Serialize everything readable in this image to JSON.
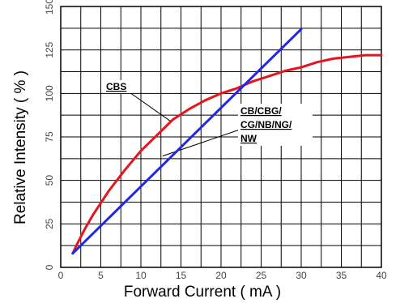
{
  "chart_data": {
    "type": "line",
    "xlabel": "Forward Current ( mA )",
    "ylabel": "Relative Intensity ( % )",
    "xlim": [
      0,
      40
    ],
    "ylim": [
      0,
      150
    ],
    "x_ticks": [
      "0",
      "5",
      "10",
      "15",
      "20",
      "25",
      "30",
      "35",
      "40"
    ],
    "y_ticks": [
      "0",
      "25",
      "50",
      "75",
      "100",
      "125",
      "150"
    ],
    "grid": true,
    "series": [
      {
        "label": "CBS",
        "color": "#e8141c",
        "x": [
          1.5,
          2,
          3,
          4,
          5,
          6,
          8,
          10,
          12,
          14,
          16,
          18,
          20,
          22,
          24,
          26,
          28,
          30,
          32,
          34,
          36,
          38,
          40
        ],
        "y": [
          8,
          13,
          22,
          30,
          37,
          44,
          56,
          67,
          76,
          85,
          91,
          96,
          100,
          103,
          107,
          110,
          113,
          115,
          118,
          120,
          121,
          122,
          122
        ]
      },
      {
        "label": "CB/CBG/ CG/NB/NG/ NW",
        "color": "#1e28e6",
        "x": [
          1.5,
          30
        ],
        "y": [
          8,
          137
        ]
      }
    ],
    "annotations": [
      {
        "text": "CBS",
        "series": 0
      },
      {
        "lines": [
          "CB/CBG/",
          "CG/NB/NG/",
          "NW"
        ],
        "series": 1
      }
    ]
  }
}
